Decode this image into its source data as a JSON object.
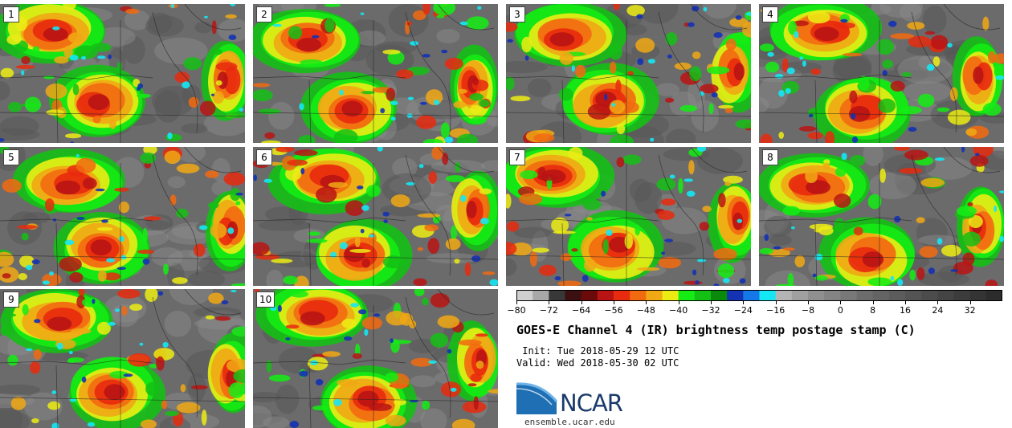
{
  "panels": [
    {
      "label": "1"
    },
    {
      "label": "2"
    },
    {
      "label": "3"
    },
    {
      "label": "4"
    },
    {
      "label": "5"
    },
    {
      "label": "6"
    },
    {
      "label": "7"
    },
    {
      "label": "8"
    },
    {
      "label": "9"
    },
    {
      "label": "10"
    }
  ],
  "colorbar": {
    "min": -80,
    "max": 40,
    "step": 4,
    "tick_labels": [
      "−80",
      "−72",
      "−64",
      "−56",
      "−48",
      "−40",
      "−32",
      "−24",
      "−16",
      "−8",
      "0",
      "8",
      "16",
      "24",
      "32"
    ],
    "colors": [
      "#d0d0d0",
      "#a8a8a8",
      "#383838",
      "#3c1010",
      "#6a0a0a",
      "#b81414",
      "#e82a0e",
      "#f26a10",
      "#f0a814",
      "#ecec14",
      "#14ec14",
      "#14c014",
      "#0a8a0a",
      "#1432b4",
      "#1478e8",
      "#14e8f4",
      "#b4b4b4",
      "#a0a0a0",
      "#909090",
      "#848484",
      "#787878",
      "#6c6c6c",
      "#646464",
      "#5c5c5c",
      "#545454",
      "#4c4c4c",
      "#444444",
      "#3c3c3c",
      "#343434",
      "#2c2c2c"
    ]
  },
  "title": "GOES-E Channel 4 (IR) brightness temp postage stamp (C)",
  "init_line": " Init: Tue 2018-05-29 12 UTC",
  "valid_line": "Valid: Wed 2018-05-30 02 UTC",
  "logo_text": "NCAR",
  "site_url": "ensemble.ucar.edu",
  "palette": {
    "background_gray": "#6b6b6b",
    "brand_blue": "#1b3a6b",
    "logo_light_blue": "#2a86c8"
  }
}
